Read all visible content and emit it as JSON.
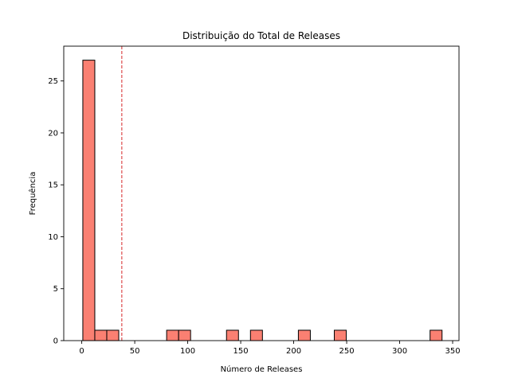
{
  "chart_data": {
    "type": "bar",
    "title": "Distribuição do Total de Releases",
    "xlabel": "Número de Releases",
    "ylabel": "Frequência",
    "bins": {
      "x_start": 1,
      "bin_width": 11.3,
      "counts": [
        27,
        1,
        1,
        0,
        0,
        0,
        0,
        1,
        1,
        0,
        0,
        0,
        1,
        0,
        1,
        0,
        0,
        0,
        1,
        0,
        0,
        1,
        0,
        0,
        0,
        0,
        0,
        0,
        0,
        1
      ]
    },
    "reference_line": {
      "x": 37.8,
      "color": "#d62728",
      "style": "dashed"
    },
    "xlim": [
      -17,
      356
    ],
    "ylim": [
      0,
      28.35
    ],
    "xticks": [
      0,
      50,
      100,
      150,
      200,
      250,
      300,
      350
    ],
    "yticks": [
      0,
      5,
      10,
      15,
      20,
      25
    ],
    "bar_color": "#fa8072",
    "edge_color": "#000000",
    "grid": false
  }
}
